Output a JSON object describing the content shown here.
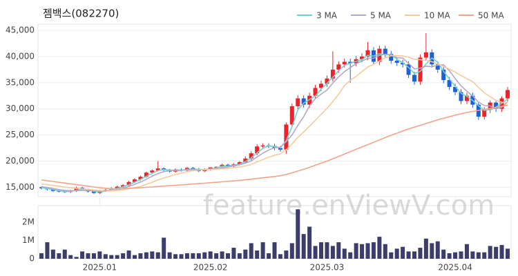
{
  "chart_data": [
    {
      "type": "candlestick",
      "title": "젬백스(082270)",
      "watermark": "feature.enViewV.com",
      "up_color": "#e8242c",
      "down_color": "#1f5fd6",
      "open": [
        15000,
        14800,
        14600,
        14300,
        14200,
        14100,
        14300,
        14900,
        14500,
        14200,
        13900,
        14300,
        14500,
        14800,
        15100,
        15400,
        16000,
        16500,
        17000,
        17800,
        18200,
        18600,
        18300,
        18000,
        18400,
        18200,
        18700,
        18500,
        18100,
        18400,
        18800,
        18900,
        19300,
        19000,
        19400,
        19800,
        20500,
        21500,
        22800,
        23000,
        22900,
        22500,
        22200,
        27000,
        30500,
        32000,
        30800,
        32500,
        34000,
        34800,
        35800,
        37500,
        38500,
        39000,
        38700,
        39500,
        40000,
        41200,
        39000,
        41500,
        40500,
        39200,
        38800,
        38500,
        36500,
        35200,
        39800,
        40800,
        38500,
        37500,
        35500,
        34200,
        33200,
        31500,
        32500,
        30800,
        28500,
        29800,
        31200,
        30000,
        32000
      ],
      "high": [
        15200,
        15000,
        14800,
        14500,
        14400,
        14500,
        15100,
        15100,
        14700,
        14400,
        14500,
        14700,
        15000,
        15300,
        15600,
        16200,
        16700,
        17200,
        18000,
        18400,
        20000,
        18800,
        18500,
        18600,
        18600,
        18900,
        18900,
        18700,
        18600,
        18600,
        19000,
        19500,
        19500,
        19600,
        20000,
        20900,
        21900,
        23200,
        23400,
        23400,
        23300,
        22900,
        27400,
        31000,
        32600,
        32600,
        33100,
        34600,
        35400,
        36400,
        41000,
        39100,
        39600,
        39600,
        40100,
        40600,
        42800,
        41800,
        42100,
        42100,
        41100,
        39800,
        39400,
        39100,
        37100,
        40400,
        44500,
        41400,
        39100,
        38100,
        36100,
        34800,
        33800,
        33100,
        33100,
        31200,
        30300,
        31600,
        31600,
        32400,
        34200
      ],
      "low": [
        14600,
        14400,
        14100,
        14000,
        13900,
        13900,
        14100,
        14300,
        14000,
        13700,
        13700,
        14100,
        14300,
        14600,
        14900,
        15200,
        15800,
        16300,
        16800,
        17600,
        18000,
        18100,
        17800,
        17800,
        18000,
        18000,
        18300,
        17900,
        17900,
        18200,
        18600,
        18700,
        18800,
        18800,
        19200,
        19600,
        20100,
        21100,
        22400,
        22500,
        22100,
        21800,
        21400,
        26600,
        29900,
        30200,
        30200,
        31900,
        33400,
        34200,
        35200,
        36900,
        37900,
        35000,
        38100,
        38900,
        39400,
        38400,
        38400,
        39900,
        38600,
        38200,
        37900,
        35900,
        34600,
        34600,
        39200,
        37900,
        36900,
        34900,
        33600,
        32600,
        30900,
        30900,
        30200,
        27900,
        28000,
        29200,
        29400,
        29400,
        31400
      ],
      "close": [
        14800,
        14600,
        14300,
        14200,
        14100,
        14300,
        14900,
        14500,
        14200,
        13900,
        14300,
        14500,
        14800,
        15100,
        15400,
        16000,
        16500,
        17000,
        17800,
        18200,
        18600,
        18300,
        18000,
        18400,
        18200,
        18700,
        18500,
        18100,
        18400,
        18800,
        18900,
        19300,
        19000,
        19400,
        19800,
        20500,
        21500,
        22800,
        23000,
        22900,
        22500,
        22200,
        27000,
        30500,
        32000,
        30800,
        32500,
        34000,
        34800,
        35800,
        37500,
        38500,
        39000,
        38700,
        39500,
        40000,
        41200,
        39000,
        41500,
        40500,
        39200,
        38800,
        38500,
        36500,
        35200,
        39800,
        40800,
        38500,
        37500,
        35500,
        34200,
        33200,
        31500,
        32500,
        30800,
        28500,
        29800,
        31200,
        30000,
        32000,
        33600
      ],
      "series": [
        {
          "name": "3 MA",
          "color": "#6fd0d0",
          "values": [
            14900,
            14750,
            14570,
            14370,
            14200,
            14200,
            14430,
            14570,
            14530,
            14200,
            14130,
            14230,
            14530,
            14800,
            15100,
            15500,
            15970,
            16500,
            17100,
            17670,
            18200,
            18370,
            18300,
            18230,
            18200,
            18430,
            18470,
            18430,
            18330,
            18430,
            18700,
            19000,
            19070,
            19230,
            19400,
            19900,
            20600,
            21600,
            22430,
            22900,
            22800,
            22530,
            23900,
            26570,
            29830,
            31100,
            31770,
            32430,
            33770,
            34870,
            36030,
            37270,
            38330,
            38730,
            39070,
            39400,
            40230,
            40070,
            40570,
            40330,
            40400,
            39500,
            38830,
            37930,
            36730,
            37170,
            38600,
            39700,
            38930,
            37170,
            35730,
            34300,
            32970,
            32400,
            31600,
            30600,
            29700,
            29830,
            30330,
            31070,
            31870
          ]
        },
        {
          "name": "5 MA",
          "color": "#b3a6cc",
          "values": [
            15100,
            14950,
            14750,
            14550,
            14400,
            14300,
            14360,
            14400,
            14400,
            14360,
            14360,
            14280,
            14340,
            14520,
            14820,
            15160,
            15560,
            16000,
            16540,
            17100,
            17620,
            17980,
            18180,
            18300,
            18300,
            18320,
            18360,
            18380,
            18380,
            18500,
            18540,
            18700,
            18880,
            19080,
            19280,
            19600,
            20040,
            20800,
            21520,
            22140,
            22540,
            22680,
            23720,
            25020,
            26840,
            28500,
            30560,
            31960,
            32820,
            33580,
            34920,
            36120,
            37120,
            37900,
            38640,
            39140,
            39680,
            39680,
            40240,
            40440,
            40280,
            39800,
            39700,
            38700,
            37640,
            37760,
            38160,
            38060,
            38360,
            38420,
            37300,
            35780,
            34380,
            33380,
            32440,
            31300,
            30620,
            30560,
            30060,
            30300,
            31320
          ]
        },
        {
          "name": "10 MA",
          "color": "#f5ca9c",
          "values": [
            15600,
            15500,
            15350,
            15200,
            15050,
            14900,
            14800,
            14700,
            14600,
            14480,
            14380,
            14330,
            14350,
            14410,
            14530,
            14700,
            14920,
            15170,
            15530,
            15960,
            16390,
            16770,
            17090,
            17420,
            17700,
            17970,
            18170,
            18280,
            18340,
            18400,
            18430,
            18530,
            18630,
            18730,
            18890,
            19070,
            19370,
            19840,
            20300,
            20750,
            21110,
            21400,
            22170,
            23280,
            24540,
            25570,
            26670,
            27790,
            28970,
            30070,
            31400,
            32800,
            34450,
            35460,
            36210,
            37130,
            38000,
            38500,
            39170,
            39740,
            40150,
            40180,
            40130,
            39880,
            39450,
            39400,
            39280,
            39010,
            38610,
            38110,
            37610,
            37050,
            36360,
            35760,
            35190,
            34090,
            33060,
            32330,
            31590,
            31240,
            31180
          ]
        },
        {
          "name": "50 MA",
          "color": "#f4a288",
          "values": [
            16400,
            16250,
            16100,
            15950,
            15800,
            15650,
            15500,
            15350,
            15200,
            15050,
            14900,
            14800,
            14700,
            14700,
            14750,
            14800,
            14850,
            14900,
            14980,
            15060,
            15140,
            15220,
            15300,
            15380,
            15460,
            15540,
            15620,
            15700,
            15780,
            15860,
            15950,
            16040,
            16130,
            16220,
            16310,
            16420,
            16540,
            16670,
            16800,
            16930,
            17060,
            17200,
            17450,
            17750,
            18100,
            18450,
            18800,
            19200,
            19600,
            20000,
            20450,
            20900,
            21350,
            21800,
            22250,
            22700,
            23150,
            23600,
            24050,
            24500,
            24950,
            25350,
            25750,
            26150,
            26500,
            26850,
            27200,
            27550,
            27900,
            28200,
            28500,
            28800,
            29050,
            29300,
            29500,
            29700,
            29900,
            30100,
            30300,
            30500,
            30700
          ]
        }
      ],
      "ylim": [
        13200,
        46200
      ],
      "yticks": [
        {
          "value": 15000,
          "label": "15,000"
        },
        {
          "value": 20000,
          "label": "20,000"
        },
        {
          "value": 25000,
          "label": "25,000"
        },
        {
          "value": 30000,
          "label": "30,000"
        },
        {
          "value": 35000,
          "label": "35,000"
        },
        {
          "value": 40000,
          "label": "40,000"
        },
        {
          "value": 45000,
          "label": "45,000"
        }
      ],
      "grid": true,
      "legend": "top-right"
    },
    {
      "type": "bar",
      "color": "#3d3d6b",
      "categories": [
        null,
        null,
        null,
        null,
        null,
        null,
        null,
        null,
        null,
        null,
        "2025.01",
        null,
        null,
        null,
        null,
        null,
        null,
        null,
        null,
        null,
        null,
        null,
        null,
        null,
        null,
        null,
        null,
        null,
        null,
        "2025.02",
        null,
        null,
        null,
        null,
        null,
        null,
        null,
        null,
        null,
        null,
        null,
        null,
        null,
        null,
        null,
        null,
        null,
        null,
        null,
        "2025.03",
        null,
        null,
        null,
        null,
        null,
        null,
        null,
        null,
        null,
        null,
        null,
        null,
        null,
        null,
        null,
        null,
        null,
        null,
        null,
        null,
        null,
        "2025.04",
        null,
        null,
        null,
        null,
        null,
        null,
        null,
        null,
        null
      ],
      "values": [
        300000,
        900000,
        500000,
        300000,
        500000,
        200000,
        100000,
        400000,
        300000,
        300000,
        400000,
        250000,
        200000,
        200000,
        300000,
        450000,
        200000,
        300000,
        350000,
        400000,
        350000,
        1150000,
        350000,
        250000,
        250000,
        300000,
        300000,
        300000,
        350000,
        400000,
        300000,
        400000,
        300000,
        600000,
        300000,
        500000,
        850000,
        450000,
        900000,
        300000,
        900000,
        250000,
        450000,
        850000,
        2700000,
        1350000,
        1750000,
        700000,
        900000,
        900000,
        700000,
        900000,
        550000,
        350000,
        850000,
        800000,
        850000,
        900000,
        1200000,
        800000,
        350000,
        550000,
        650000,
        400000,
        400000,
        600000,
        1100000,
        850000,
        950000,
        500000,
        300000,
        350000,
        400000,
        800000,
        400000,
        350000,
        350000,
        700000,
        650000,
        750000,
        550000
      ],
      "ylim": [
        0,
        2900000
      ],
      "yticks": [
        0,
        {
          "value": 1000000,
          "label": "1M"
        },
        {
          "value": 2000000,
          "label": "2M"
        }
      ]
    }
  ]
}
